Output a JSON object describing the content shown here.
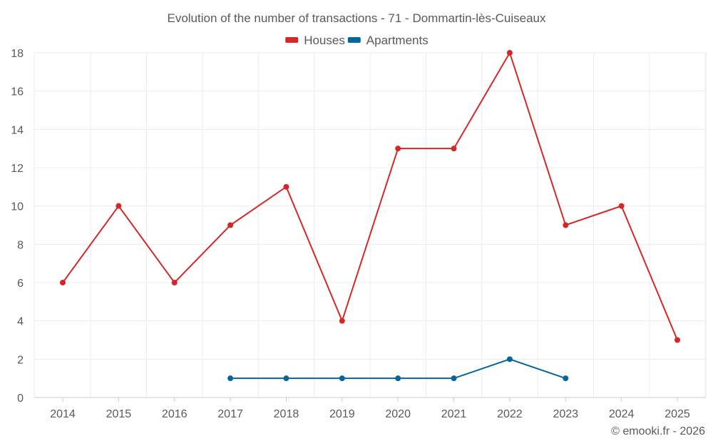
{
  "chart_data": {
    "type": "line",
    "title": "Evolution of the number of transactions - 71 - Dommartin-lès-Cuiseaux",
    "categories": [
      "2014",
      "2015",
      "2016",
      "2017",
      "2018",
      "2019",
      "2020",
      "2021",
      "2022",
      "2023",
      "2024",
      "2025"
    ],
    "series": [
      {
        "name": "Houses",
        "color": "#d62728",
        "values": [
          6,
          10,
          6,
          9,
          11,
          4,
          13,
          13,
          18,
          9,
          10,
          3
        ]
      },
      {
        "name": "Apartments",
        "color": "#04679c",
        "values": [
          null,
          null,
          null,
          1,
          1,
          1,
          1,
          1,
          2,
          1,
          null,
          null
        ]
      }
    ],
    "yticks": [
      0,
      2,
      4,
      6,
      8,
      10,
      12,
      14,
      16,
      18
    ],
    "ylim": [
      0,
      18
    ],
    "xlabel": "",
    "ylabel": "",
    "grid": true,
    "legend_position": "top-center"
  },
  "footer": {
    "credit": "© emooki.fr - 2026"
  }
}
